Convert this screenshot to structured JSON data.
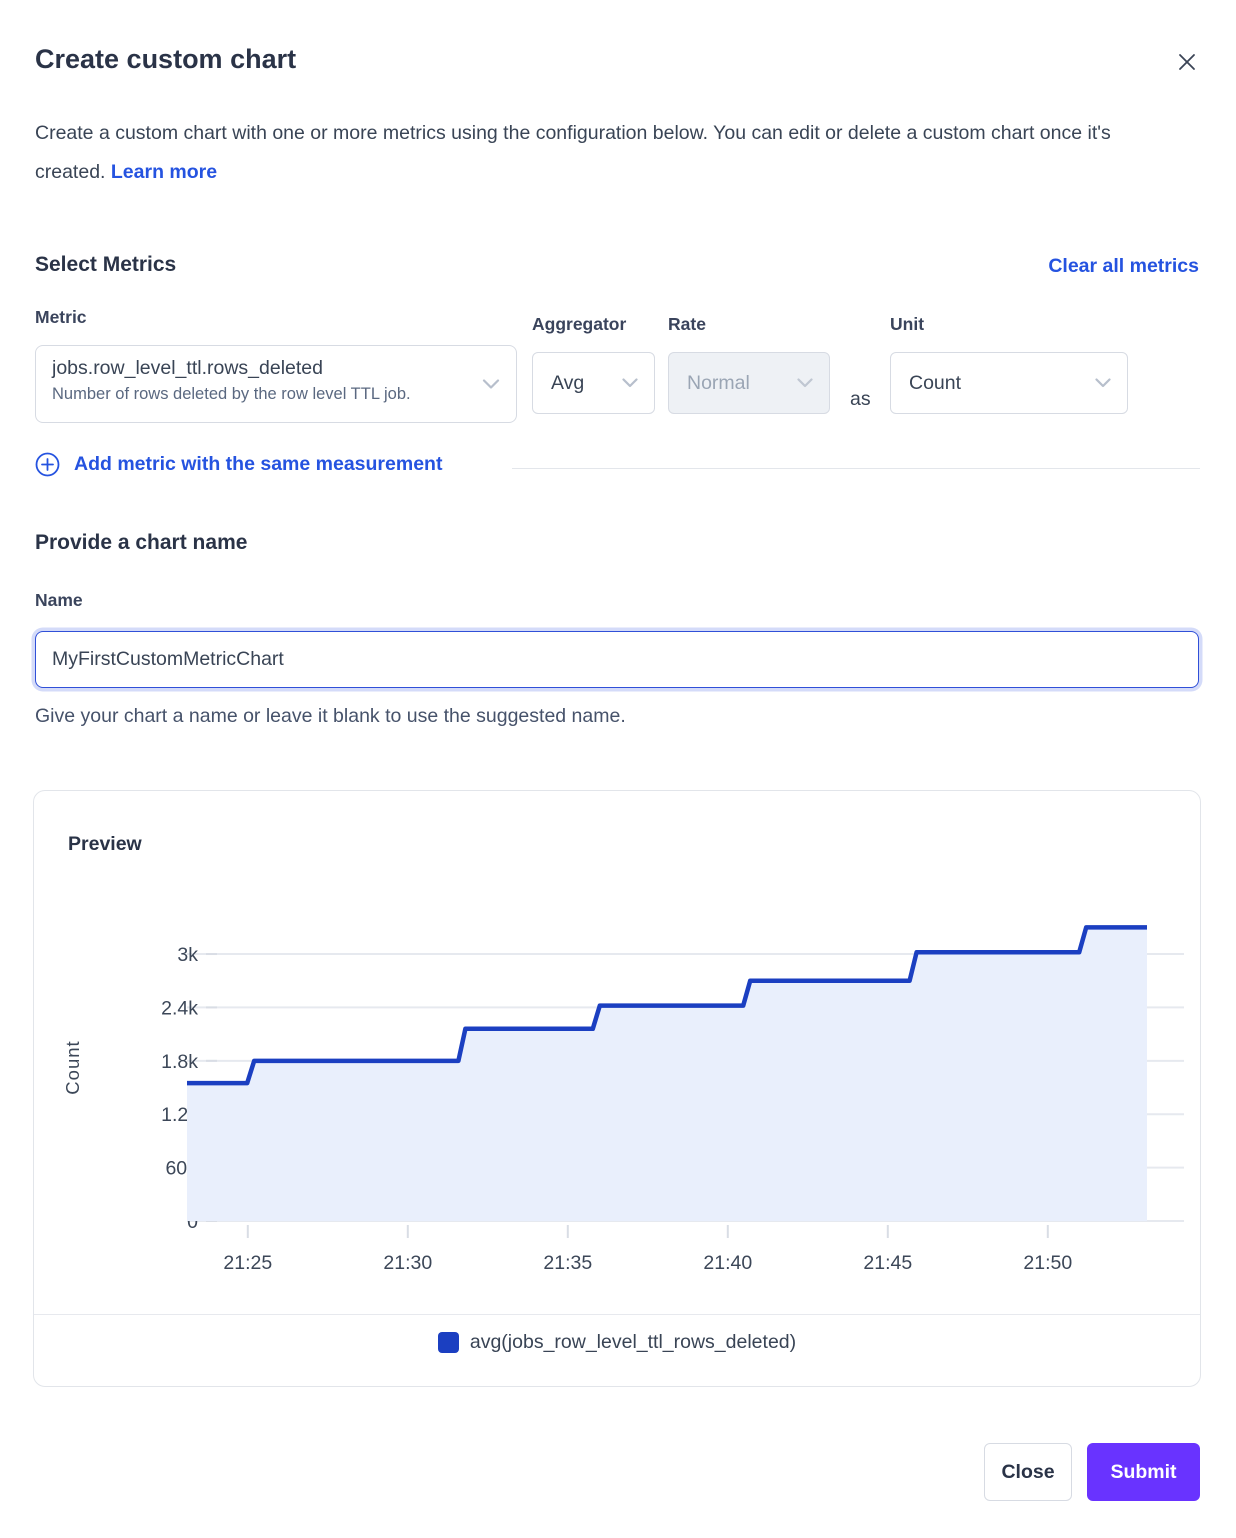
{
  "modal": {
    "title": "Create custom chart",
    "description": "Create a custom chart with one or more metrics using the configuration below. You can edit or delete a custom chart once it's created.",
    "learn_more": "Learn more"
  },
  "metrics_section": {
    "heading": "Select Metrics",
    "clear_all": "Clear all metrics",
    "metric_label": "Metric",
    "aggregator_label": "Aggregator",
    "rate_label": "Rate",
    "unit_label": "Unit",
    "metric_value": "jobs.row_level_ttl.rows_deleted",
    "metric_description": "Number of rows deleted by the row level TTL job.",
    "aggregator_value": "Avg",
    "rate_value": "Normal",
    "as_label": "as",
    "unit_value": "Count",
    "add_metric_label": "Add metric with the same measurement"
  },
  "name_section": {
    "heading": "Provide a chart name",
    "label": "Name",
    "value": "MyFirstCustomMetricChart",
    "helper": "Give your chart a name or leave it blank to use the suggested name."
  },
  "preview": {
    "heading": "Preview"
  },
  "chart_data": {
    "type": "area",
    "line_style": "step-after",
    "title": "Preview",
    "xlabel": "",
    "ylabel": "Count",
    "grid": "horizontal",
    "legend_position": "bottom-center",
    "ylim": [
      0,
      3450
    ],
    "x_range_minutes": [
      23.1,
      53.1
    ],
    "y_ticks": [
      {
        "label": "0",
        "value": 0
      },
      {
        "label": "600",
        "value": 600
      },
      {
        "label": "1.2k",
        "value": 1200
      },
      {
        "label": "1.8k",
        "value": 1800
      },
      {
        "label": "2.4k",
        "value": 2400
      },
      {
        "label": "3k",
        "value": 3000
      }
    ],
    "x_ticks": [
      {
        "label": "21:25",
        "minute": 25
      },
      {
        "label": "21:30",
        "minute": 30
      },
      {
        "label": "21:35",
        "minute": 35
      },
      {
        "label": "21:40",
        "minute": 40
      },
      {
        "label": "21:45",
        "minute": 45
      },
      {
        "label": "21:50",
        "minute": 50
      }
    ],
    "series": [
      {
        "name": "avg(jobs_row_level_ttl_rows_deleted)",
        "color": "#1b3fc1",
        "fill_color": "#e9effc",
        "points_minute_value": [
          [
            23.1,
            1550
          ],
          [
            25.2,
            1800
          ],
          [
            31.8,
            2160
          ],
          [
            36.0,
            2420
          ],
          [
            40.7,
            2700
          ],
          [
            45.9,
            3020
          ],
          [
            51.2,
            3300
          ],
          [
            53.1,
            3300
          ]
        ]
      }
    ]
  },
  "footer": {
    "close": "Close",
    "submit": "Submit"
  },
  "colors": {
    "link": "#2553e0",
    "line": "#1b3fc1",
    "fill": "#e9effc",
    "submit": "#6933ff",
    "heading": "#2a3347"
  }
}
